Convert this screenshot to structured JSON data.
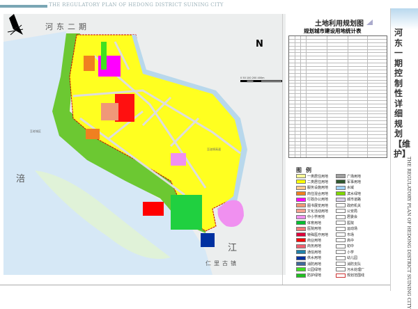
{
  "header": {
    "title": "THE REGULATORY PLAN OF HEDONG DISTRICT SUINING CITY"
  },
  "map": {
    "labels": {
      "district": "河东二期",
      "river_left": "涪",
      "river_bottom": "江",
      "town": "仁里古镇",
      "road_old_city": "至老城区",
      "road_highway": "至遂绵高速"
    },
    "north": "N",
    "scale": "0  50 100   200        400m"
  },
  "map_title": "土地利用规划图",
  "table": {
    "title": "规划城市建设用地统计表"
  },
  "legend": {
    "title": "图例",
    "items": [
      {
        "label": "一类居住用地",
        "color": "#ffff99"
      },
      {
        "label": "二类居住用地",
        "color": "#ffff00"
      },
      {
        "label": "服务设施用地",
        "color": "#f8c890"
      },
      {
        "label": "商住混合用地",
        "color": "#f08020"
      },
      {
        "label": "行政办公用地",
        "color": "#ff00ff"
      },
      {
        "label": "图书展览用地",
        "color": "#f09878"
      },
      {
        "label": "文化活动用地",
        "color": "#f4a090"
      },
      {
        "label": "中小学用地",
        "color": "#f090f0"
      },
      {
        "label": "体育用地",
        "color": "#00c030"
      },
      {
        "label": "医院用地",
        "color": "#f07878"
      },
      {
        "label": "特殊医疗用地",
        "color": "#e0003a"
      },
      {
        "label": "商业用地",
        "color": "#ff0000"
      },
      {
        "label": "商务用地",
        "color": "#f06070"
      },
      {
        "label": "通信用地",
        "color": "#2080a8"
      },
      {
        "label": "供水用地",
        "color": "#0030a0"
      },
      {
        "label": "消防用地",
        "color": "#406898"
      },
      {
        "label": "公园绿地",
        "color": "#40e020"
      },
      {
        "label": "防护绿地",
        "color": "#20c020"
      },
      {
        "label": "广场用地",
        "color": "#a0a0a0"
      },
      {
        "label": "军事用地",
        "color": "#305830"
      },
      {
        "label": "水域",
        "color": "#a0d0f4"
      },
      {
        "label": "滨水绿地",
        "color": "#80d800"
      },
      {
        "label": "城市道路",
        "color": "#d8d0e8"
      },
      {
        "label": "政府机关",
        "color": "#ffffff"
      },
      {
        "label": "公安局",
        "color": "#ffffff"
      },
      {
        "label": "居委会",
        "color": "#ffffff"
      },
      {
        "label": "医院",
        "color": "#ffffff"
      },
      {
        "label": "运动场",
        "color": "#ffffff"
      },
      {
        "label": "市场",
        "color": "#ffffff"
      },
      {
        "label": "高中",
        "color": "#ffffff"
      },
      {
        "label": "初中",
        "color": "#ffffff"
      },
      {
        "label": "小学",
        "color": "#ffffff"
      },
      {
        "label": "幼儿园",
        "color": "#ffffff"
      },
      {
        "label": "消防支队",
        "color": "#ffffff"
      },
      {
        "label": "污水处理厂",
        "color": "#ffffff"
      },
      {
        "label": "规划范围线",
        "color": "#ffffff"
      }
    ]
  },
  "side": {
    "title_cn": "河东一期控制性详细规划【维护】",
    "title_en": "THE REGULATORY PLAN OF HEDONG DISTRICT SUINING CITY"
  }
}
